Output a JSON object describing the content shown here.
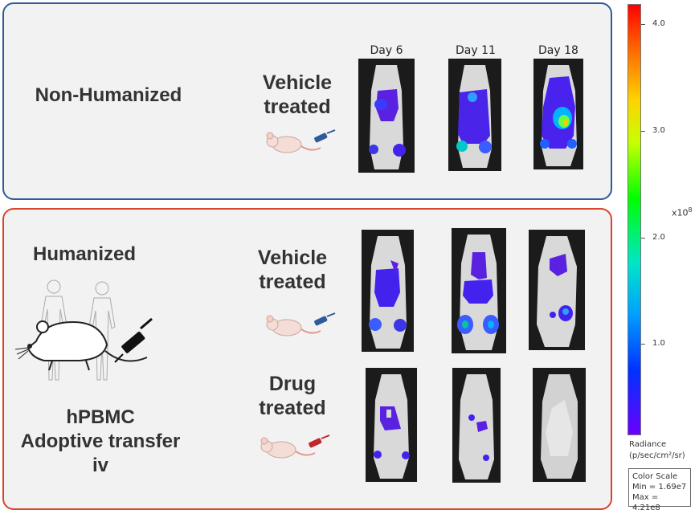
{
  "top_panel": {
    "group_label": "Non-Humanized",
    "treatment_line1": "Vehicle",
    "treatment_line2": "treated",
    "days": [
      "Day 6",
      "Day 11",
      "Day 18"
    ],
    "border_color": "#2f5b9a"
  },
  "bottom_panel": {
    "group_label": "Humanized",
    "transfer_line1": "hPBMC",
    "transfer_line2": "Adoptive transfer",
    "transfer_line3": "iv",
    "vehicle_line1": "Vehicle",
    "vehicle_line2": "treated",
    "drug_line1": "Drug",
    "drug_line2": "treated",
    "border_color": "#d8452b"
  },
  "colorbar": {
    "ticks": [
      "4.0",
      "3.0",
      "2.0",
      "1.0"
    ],
    "multiplier_base": "x10",
    "multiplier_exp": "8",
    "radiance_line1": "Radiance",
    "radiance_line2": "(p/sec/cm²/sr)",
    "scale_title": "Color Scale",
    "min_text": "Min = 1.69e7",
    "max_text": "Max = 4.21e8"
  },
  "icons": [
    "mouse-icon",
    "syringe-icon",
    "human-silhouette-icon"
  ],
  "colors": {
    "vehicle_syringe": "#2f5b9a",
    "drug_syringe": "#c0282b"
  }
}
